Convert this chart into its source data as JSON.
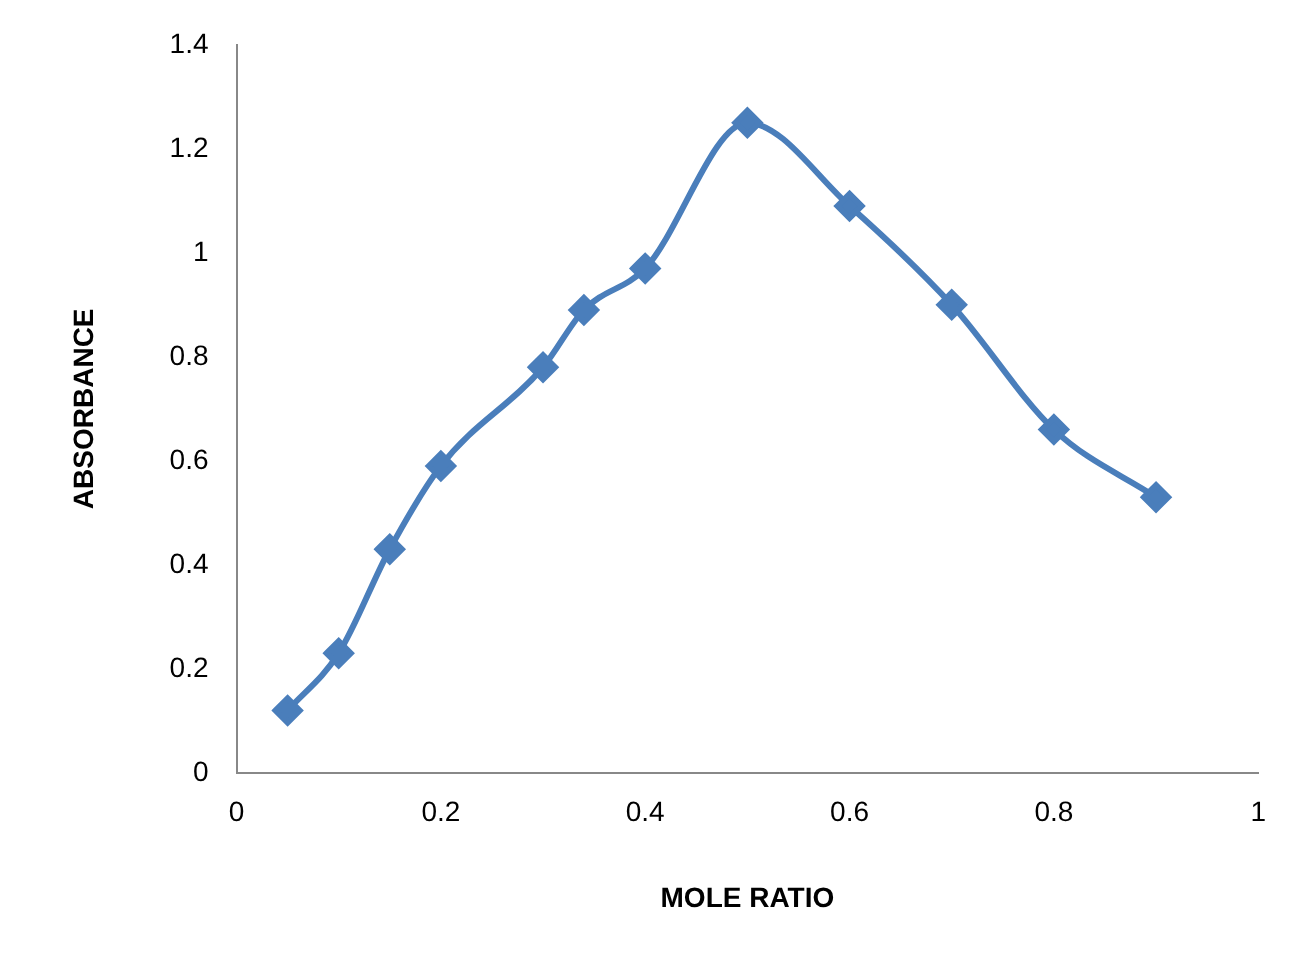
{
  "chart_data": {
    "type": "line",
    "xlabel": "MOLE RATIO",
    "ylabel": "ABSORBANCE",
    "x": [
      0.05,
      0.1,
      0.15,
      0.2,
      0.3,
      0.34,
      0.4,
      0.5,
      0.6,
      0.7,
      0.8,
      0.9
    ],
    "series": [
      {
        "color": "#4a7ebb",
        "values": [
          0.12,
          0.23,
          0.43,
          0.59,
          0.78,
          0.89,
          0.97,
          1.25,
          1.09,
          0.9,
          0.66,
          0.53
        ]
      }
    ],
    "xlim": [
      0,
      1
    ],
    "xticks": [
      0,
      0.2,
      0.4,
      0.6,
      0.8,
      1
    ],
    "ylim": [
      0,
      1.4
    ],
    "yticks": [
      0,
      0.2,
      0.4,
      0.6,
      0.8,
      1,
      1.2,
      1.4
    ],
    "grid": false,
    "legend": false,
    "marker": "diamond",
    "line_style": "solid"
  }
}
